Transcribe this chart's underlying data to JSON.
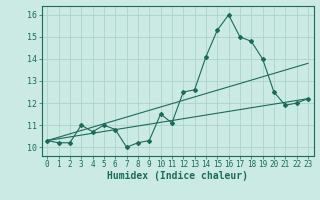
{
  "xlabel": "Humidex (Indice chaleur)",
  "background_color": "#cceae4",
  "line_color": "#1a6b5a",
  "grid_color": "#aad4cc",
  "xlim": [
    -0.5,
    23.5
  ],
  "ylim": [
    9.6,
    16.4
  ],
  "xticks": [
    0,
    1,
    2,
    3,
    4,
    5,
    6,
    7,
    8,
    9,
    10,
    11,
    12,
    13,
    14,
    15,
    16,
    17,
    18,
    19,
    20,
    21,
    22,
    23
  ],
  "yticks": [
    10,
    11,
    12,
    13,
    14,
    15,
    16
  ],
  "line1_x": [
    0,
    1,
    2,
    3,
    4,
    5,
    6,
    7,
    8,
    9,
    10,
    11,
    12,
    13,
    14,
    15,
    16,
    17,
    18,
    19,
    20,
    21,
    22,
    23
  ],
  "line1_y": [
    10.3,
    10.2,
    10.2,
    11.0,
    10.7,
    11.0,
    10.8,
    10.0,
    10.2,
    10.3,
    11.5,
    11.1,
    12.5,
    12.6,
    14.1,
    15.3,
    16.0,
    15.0,
    14.8,
    14.0,
    12.5,
    11.9,
    12.0,
    12.2
  ],
  "line2_x": [
    0,
    23
  ],
  "line2_y": [
    10.3,
    13.8
  ],
  "line3_x": [
    0,
    23
  ],
  "line3_y": [
    10.3,
    12.2
  ],
  "tick_fontsize": 5.5,
  "xlabel_fontsize": 7
}
